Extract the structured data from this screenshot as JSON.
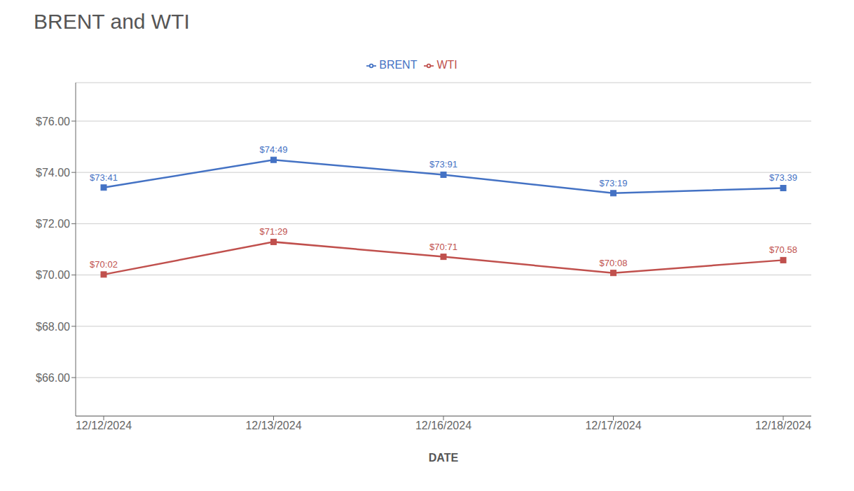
{
  "chart_data": {
    "type": "line",
    "title": "BRENT and WTI",
    "xlabel": "DATE",
    "categories": [
      "12/12/2024",
      "12/13/2024",
      "12/16/2024",
      "12/17/2024",
      "12/18/2024"
    ],
    "series": [
      {
        "name": "BRENT",
        "color": "#4472C4",
        "marker": "square",
        "values": [
          73.41,
          74.49,
          73.91,
          73.19,
          73.39
        ],
        "value_labels": [
          "$73:41",
          "$74:49",
          "$73:91",
          "$73:19",
          "$73.39"
        ]
      },
      {
        "name": "WTI",
        "color": "#C0504D",
        "marker": "square",
        "values": [
          70.02,
          71.29,
          70.71,
          70.08,
          70.58
        ],
        "value_labels": [
          "$70:02",
          "$71:29",
          "$70:71",
          "$70:08",
          "$70.58"
        ]
      }
    ],
    "ylim": [
      64.5,
      77.5
    ],
    "yticks": [
      {
        "value": 66,
        "label": "$66.00"
      },
      {
        "value": 68,
        "label": "$68.00"
      },
      {
        "value": 70,
        "label": "$70.00"
      },
      {
        "value": 72,
        "label": "$72.00"
      },
      {
        "value": 74,
        "label": "$74.00"
      },
      {
        "value": 76,
        "label": "$76.00"
      }
    ],
    "grid": true,
    "legend": "top",
    "data_labels": true
  }
}
